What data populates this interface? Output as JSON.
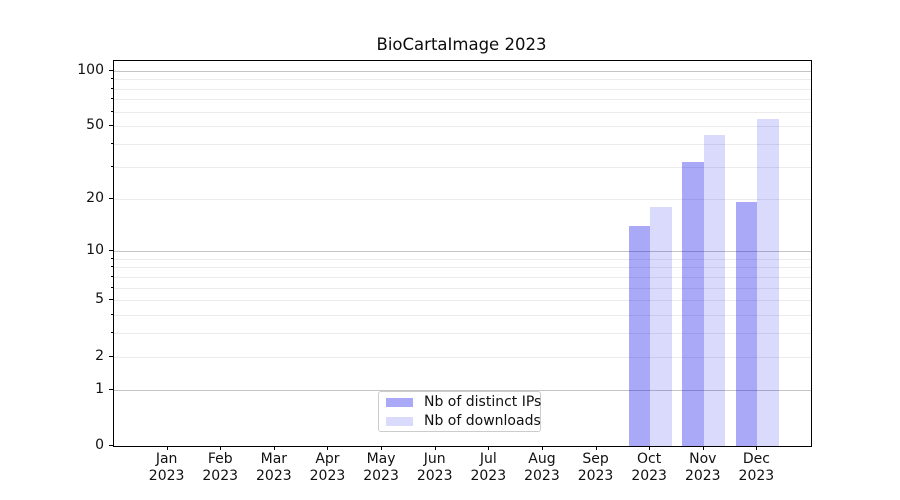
{
  "chart_data": {
    "type": "bar",
    "title": "BioCartaImage 2023",
    "categories": [
      "Jan",
      "Feb",
      "Mar",
      "Apr",
      "May",
      "Jun",
      "Jul",
      "Aug",
      "Sep",
      "Oct",
      "Nov",
      "Dec"
    ],
    "year_label": "2023",
    "series": [
      {
        "name": "Nb of distinct IPs",
        "color": "rgba(10,10,235,0.35)",
        "color_hex": "#a9a9f8",
        "values": [
          0,
          0,
          0,
          0,
          0,
          0,
          0,
          0,
          0,
          14,
          32,
          19
        ]
      },
      {
        "name": "Nb of downloads",
        "color": "rgba(10,10,235,0.15)",
        "color_hex": "#dadafc",
        "values": [
          0,
          0,
          0,
          0,
          0,
          0,
          0,
          0,
          0,
          18,
          45,
          55
        ]
      }
    ],
    "y_scale": "log1p",
    "ylim": [
      0,
      113
    ],
    "y_ticks": [
      0,
      1,
      2,
      5,
      10,
      20,
      50,
      100
    ],
    "y_major_gridlines": [
      1,
      10,
      100
    ],
    "y_minor_gridlines": [
      2,
      3,
      4,
      5,
      6,
      7,
      8,
      9,
      20,
      30,
      40,
      50,
      60,
      70,
      80,
      90
    ],
    "grid": true,
    "legend_position": "lower center",
    "legend_entries": [
      "Nb of distinct IPs",
      "Nb of downloads"
    ]
  },
  "colors": {
    "background": "#ffffff",
    "spine": "#000000",
    "text": "#111111",
    "major_grid": "#c4c4c4",
    "minor_grid": "#ebebeb",
    "legend_border": "#cccccc"
  }
}
